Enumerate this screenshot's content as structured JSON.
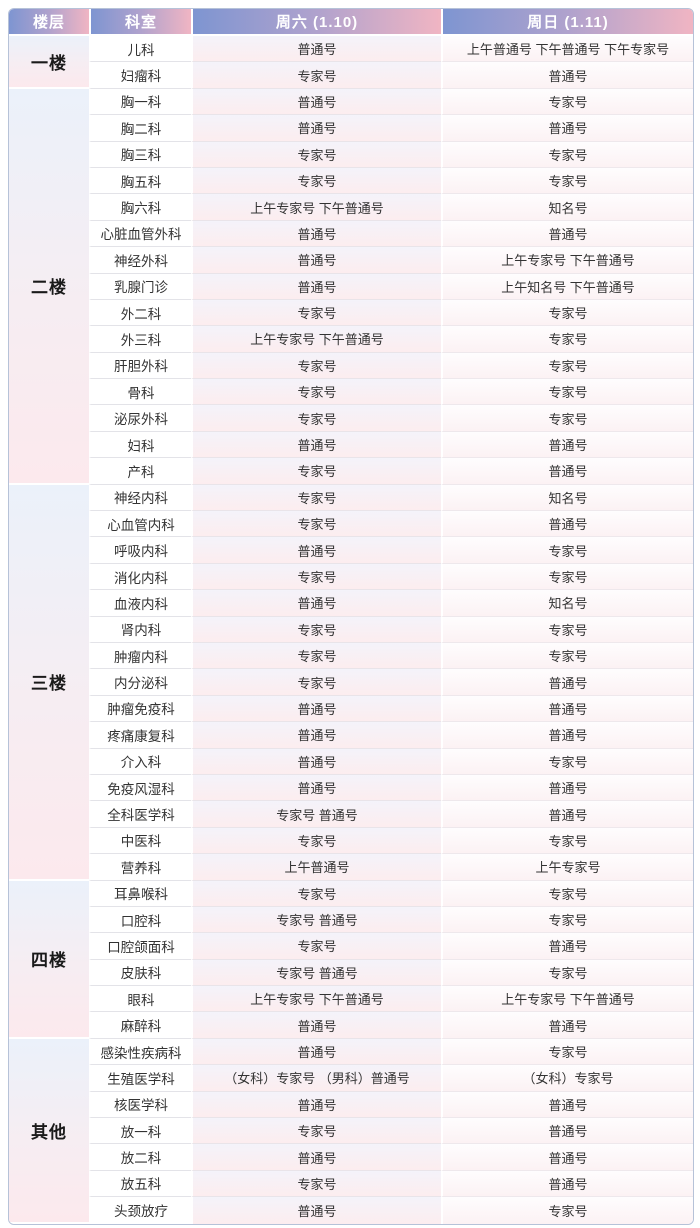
{
  "table": {
    "columns": [
      "楼层",
      "科室",
      "周六 (1.10)",
      "周日 (1.11)"
    ],
    "groups": [
      {
        "floor": "一楼",
        "rows": [
          {
            "dept": "儿科",
            "sat": "普通号",
            "sun": "上午普通号 下午普通号 下午专家号"
          },
          {
            "dept": "妇瘤科",
            "sat": "专家号",
            "sun": "普通号"
          }
        ]
      },
      {
        "floor": "二楼",
        "rows": [
          {
            "dept": "胸一科",
            "sat": "普通号",
            "sun": "专家号"
          },
          {
            "dept": "胸二科",
            "sat": "普通号",
            "sun": "普通号"
          },
          {
            "dept": "胸三科",
            "sat": "专家号",
            "sun": "专家号"
          },
          {
            "dept": "胸五科",
            "sat": "专家号",
            "sun": "专家号"
          },
          {
            "dept": "胸六科",
            "sat": "上午专家号 下午普通号",
            "sun": "知名号"
          },
          {
            "dept": "心脏血管外科",
            "sat": "普通号",
            "sun": "普通号"
          },
          {
            "dept": "神经外科",
            "sat": "普通号",
            "sun": "上午专家号 下午普通号"
          },
          {
            "dept": "乳腺门诊",
            "sat": "普通号",
            "sun": "上午知名号 下午普通号"
          },
          {
            "dept": "外二科",
            "sat": "专家号",
            "sun": "专家号"
          },
          {
            "dept": "外三科",
            "sat": "上午专家号 下午普通号",
            "sun": "专家号"
          },
          {
            "dept": "肝胆外科",
            "sat": "专家号",
            "sun": "专家号"
          },
          {
            "dept": "骨科",
            "sat": "专家号",
            "sun": "专家号"
          },
          {
            "dept": "泌尿外科",
            "sat": "专家号",
            "sun": "专家号"
          },
          {
            "dept": "妇科",
            "sat": "普通号",
            "sun": "普通号"
          },
          {
            "dept": "产科",
            "sat": "专家号",
            "sun": "普通号"
          }
        ]
      },
      {
        "floor": "三楼",
        "rows": [
          {
            "dept": "神经内科",
            "sat": "专家号",
            "sun": "知名号"
          },
          {
            "dept": "心血管内科",
            "sat": "专家号",
            "sun": "普通号"
          },
          {
            "dept": "呼吸内科",
            "sat": "普通号",
            "sun": "专家号"
          },
          {
            "dept": "消化内科",
            "sat": "专家号",
            "sun": "专家号"
          },
          {
            "dept": "血液内科",
            "sat": "普通号",
            "sun": "知名号"
          },
          {
            "dept": "肾内科",
            "sat": "专家号",
            "sun": "专家号"
          },
          {
            "dept": "肿瘤内科",
            "sat": "专家号",
            "sun": "专家号"
          },
          {
            "dept": "内分泌科",
            "sat": "专家号",
            "sun": "普通号"
          },
          {
            "dept": "肿瘤免疫科",
            "sat": "普通号",
            "sun": "普通号"
          },
          {
            "dept": "疼痛康复科",
            "sat": "普通号",
            "sun": "普通号"
          },
          {
            "dept": "介入科",
            "sat": "普通号",
            "sun": "专家号"
          },
          {
            "dept": "免疫风湿科",
            "sat": "普通号",
            "sun": "普通号"
          },
          {
            "dept": "全科医学科",
            "sat": "专家号 普通号",
            "sun": "普通号"
          },
          {
            "dept": "中医科",
            "sat": "专家号",
            "sun": "专家号"
          },
          {
            "dept": "营养科",
            "sat": "上午普通号",
            "sun": "上午专家号"
          }
        ]
      },
      {
        "floor": "四楼",
        "rows": [
          {
            "dept": "耳鼻喉科",
            "sat": "专家号",
            "sun": "专家号"
          },
          {
            "dept": "口腔科",
            "sat": "专家号 普通号",
            "sun": "专家号"
          },
          {
            "dept": "口腔颌面科",
            "sat": "专家号",
            "sun": "普通号"
          },
          {
            "dept": "皮肤科",
            "sat": "专家号 普通号",
            "sun": "专家号"
          },
          {
            "dept": "眼科",
            "sat": "上午专家号 下午普通号",
            "sun": "上午专家号 下午普通号"
          },
          {
            "dept": "麻醉科",
            "sat": "普通号",
            "sun": "普通号"
          }
        ]
      },
      {
        "floor": "其他",
        "rows": [
          {
            "dept": "感染性疾病科",
            "sat": "普通号",
            "sun": "专家号"
          },
          {
            "dept": "生殖医学科",
            "sat": "（女科）专家号 （男科）普通号",
            "sun": "（女科）专家号"
          },
          {
            "dept": "核医学科",
            "sat": "普通号",
            "sun": "普通号"
          },
          {
            "dept": "放一科",
            "sat": "专家号",
            "sun": "普通号"
          },
          {
            "dept": "放二科",
            "sat": "普通号",
            "sun": "普通号"
          },
          {
            "dept": "放五科",
            "sat": "专家号",
            "sun": "普通号"
          },
          {
            "dept": "头颈放疗",
            "sat": "普通号",
            "sun": "专家号"
          }
        ]
      }
    ]
  },
  "colors": {
    "header_gradient_start": "#7e95d1",
    "header_gradient_end": "#f0b5c3",
    "floor_cell_top": "#ebf1fa",
    "floor_cell_bottom": "#fce9ed",
    "sat_cell_top": "#f4f3fa",
    "sat_cell_bottom": "#fcedef",
    "sun_cell_top": "#fefdfe",
    "sun_cell_bottom": "#fcf2f4",
    "outer_border": "#b6c2d8",
    "header_text": "#ffffff",
    "body_text": "#333333"
  }
}
